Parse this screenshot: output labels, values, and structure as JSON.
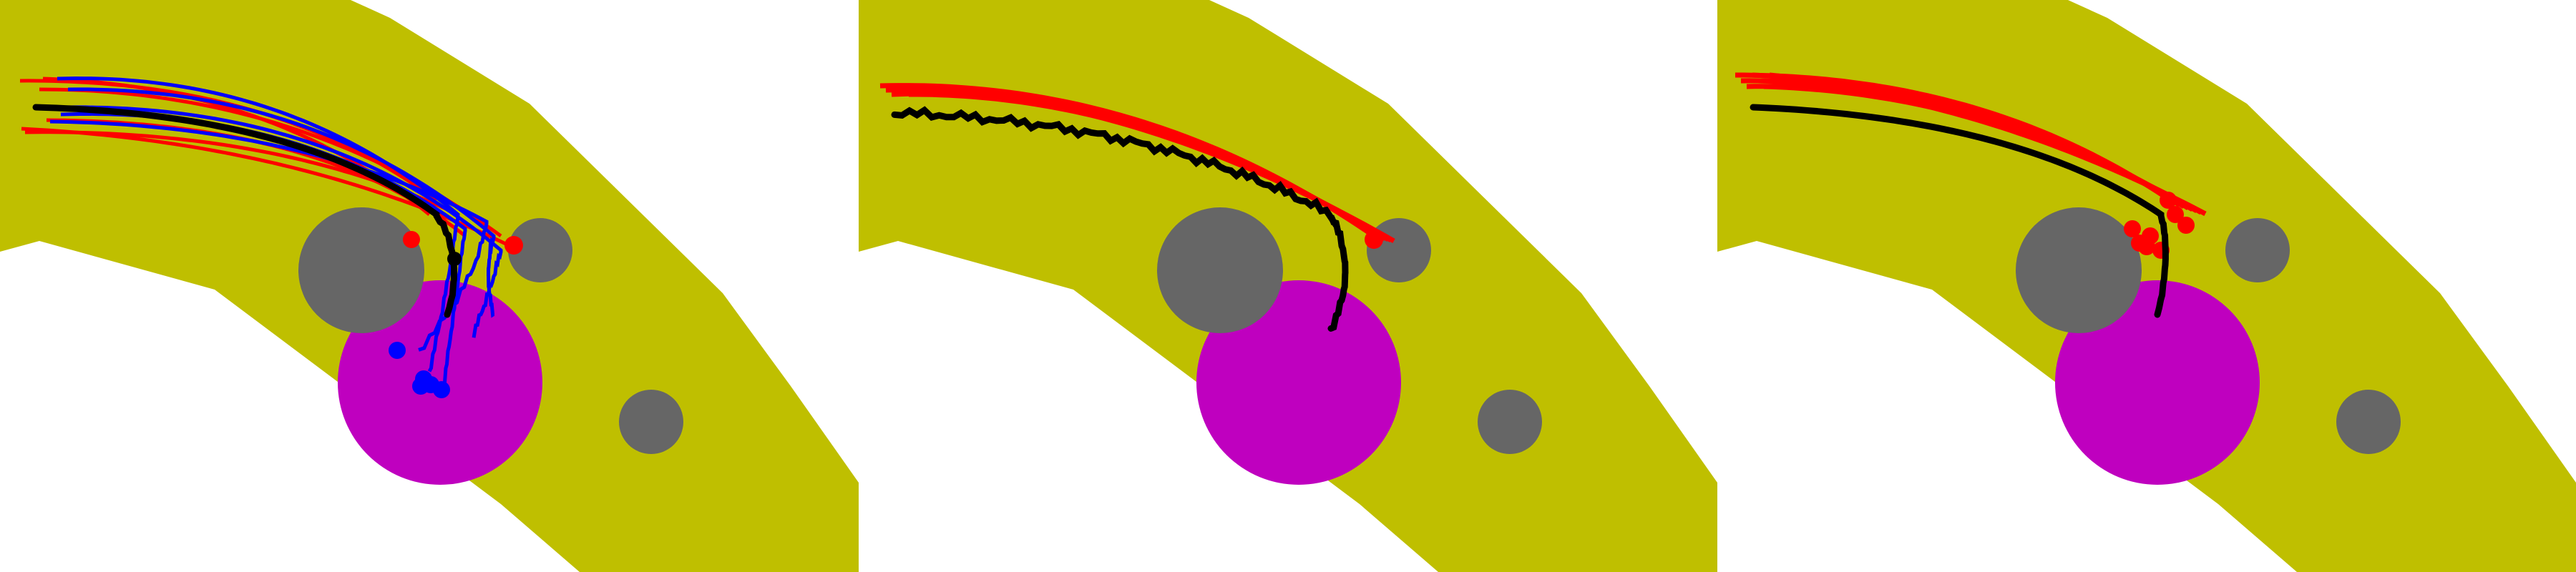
{
  "colors": {
    "background": "#ffffff",
    "road": "#bfbf00",
    "obstacle": "#666666",
    "goal": "#bf00bf",
    "reference_path": "#000000",
    "sample_red": "#ff0000",
    "sample_blue": "#0000ff"
  },
  "panels": [
    {
      "id": "left",
      "has_blue_samples": true,
      "has_red_samples": true,
      "reference_style": "smooth"
    },
    {
      "id": "middle",
      "has_blue_samples": false,
      "has_red_samples": true,
      "reference_style": "jagged"
    },
    {
      "id": "right",
      "has_blue_samples": false,
      "has_red_samples": true,
      "reference_style": "smooth"
    }
  ]
}
